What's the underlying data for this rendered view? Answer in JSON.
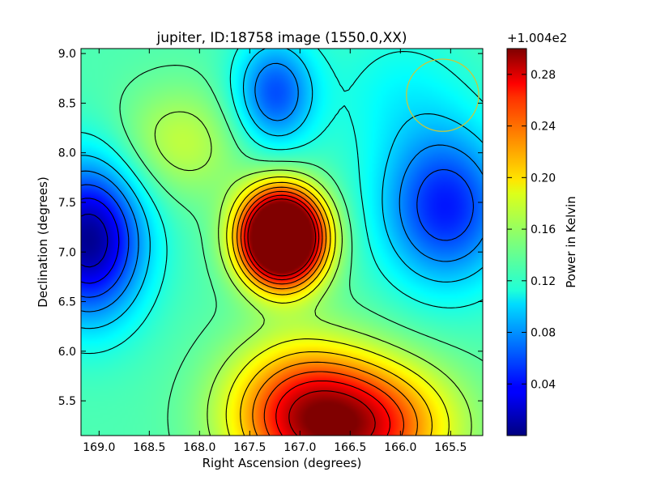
{
  "chart_data": {
    "type": "heatmap",
    "title": "jupiter, ID:18758 image (1550.0,XX)",
    "xlabel": "Right Ascension (degrees)",
    "ylabel": "Declination (degrees)",
    "xlim": [
      169.18,
      165.18
    ],
    "ylim": [
      5.15,
      9.05
    ],
    "x_ticks": [
      "169.0",
      "168.5",
      "168.0",
      "167.5",
      "167.0",
      "166.5",
      "166.0",
      "165.5"
    ],
    "y_ticks": [
      "5.5",
      "6.0",
      "6.5",
      "7.0",
      "7.5",
      "8.0",
      "8.5",
      "9.0"
    ],
    "colormap": "jet",
    "colorbar": {
      "label": "Power in Kelvin",
      "offset_text": "+1.004e2",
      "range": [
        0.0,
        0.3
      ],
      "ticks": [
        "0.04",
        "0.08",
        "0.12",
        "0.16",
        "0.20",
        "0.24",
        "0.28"
      ]
    },
    "contours": true,
    "features": [
      {
        "kind": "peak",
        "ra": 167.18,
        "dec": 7.15,
        "value": 0.3,
        "sigma_ra": 0.28,
        "sigma_dec": 0.32
      },
      {
        "kind": "peak",
        "ra": 166.5,
        "dec": 5.25,
        "value": 0.14,
        "sigma_ra": 0.65,
        "sigma_dec": 0.45
      },
      {
        "kind": "peak",
        "ra": 167.05,
        "dec": 5.5,
        "value": 0.06,
        "sigma_ra": 0.5,
        "sigma_dec": 0.5
      },
      {
        "kind": "peak",
        "ra": 168.2,
        "dec": 8.1,
        "value": 0.035,
        "sigma_ra": 0.45,
        "sigma_dec": 0.4
      },
      {
        "kind": "trough",
        "ra": 169.1,
        "dec": 7.12,
        "value": -0.13,
        "sigma_ra": 0.38,
        "sigma_dec": 0.55
      },
      {
        "kind": "trough",
        "ra": 165.55,
        "dec": 7.45,
        "value": -0.09,
        "sigma_ra": 0.45,
        "sigma_dec": 0.55
      },
      {
        "kind": "trough",
        "ra": 167.25,
        "dec": 8.6,
        "value": -0.075,
        "sigma_ra": 0.28,
        "sigma_dec": 0.38
      },
      {
        "kind": "trough",
        "ra": 166.0,
        "dec": 8.6,
        "value": -0.02,
        "sigma_ra": 0.5,
        "sigma_dec": 0.5
      }
    ],
    "background_value": 0.135,
    "beam_circle": {
      "ra": 165.58,
      "dec": 8.58,
      "radius_deg": 0.36,
      "color": "#c8c83c"
    }
  }
}
